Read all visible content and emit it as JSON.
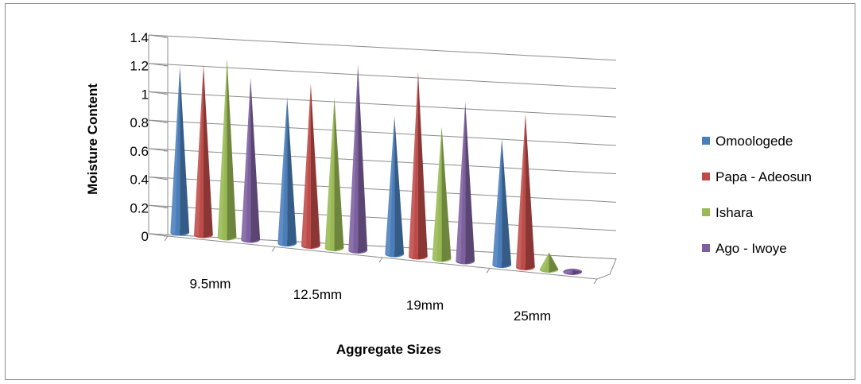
{
  "chart_data": {
    "type": "bar",
    "style": "3d-cone",
    "xlabel": "Aggregate Sizes",
    "ylabel": "Moisture Content",
    "categories": [
      "9.5mm",
      "12.5mm",
      "19mm",
      "25mm"
    ],
    "ylim": [
      0,
      1.4
    ],
    "yticks": [
      "0",
      "0.2",
      "0.4",
      "0.6",
      "0.8",
      "1",
      "1.2",
      "1.4"
    ],
    "grid": true,
    "legend_position": "right",
    "series": [
      {
        "name": "Omoologede",
        "color": "#4a7ebb",
        "values": [
          1.17,
          1.03,
          0.97,
          0.89
        ]
      },
      {
        "name": "Papa - Adeosun",
        "color": "#be4b48",
        "values": [
          1.2,
          1.14,
          1.3,
          1.08
        ]
      },
      {
        "name": "Ishara",
        "color": "#98b954",
        "values": [
          1.26,
          1.06,
          0.93,
          0.12
        ]
      },
      {
        "name": "Ago - Iwoye",
        "color": "#7d60a0",
        "values": [
          1.14,
          1.31,
          1.12,
          0.01
        ]
      }
    ]
  }
}
